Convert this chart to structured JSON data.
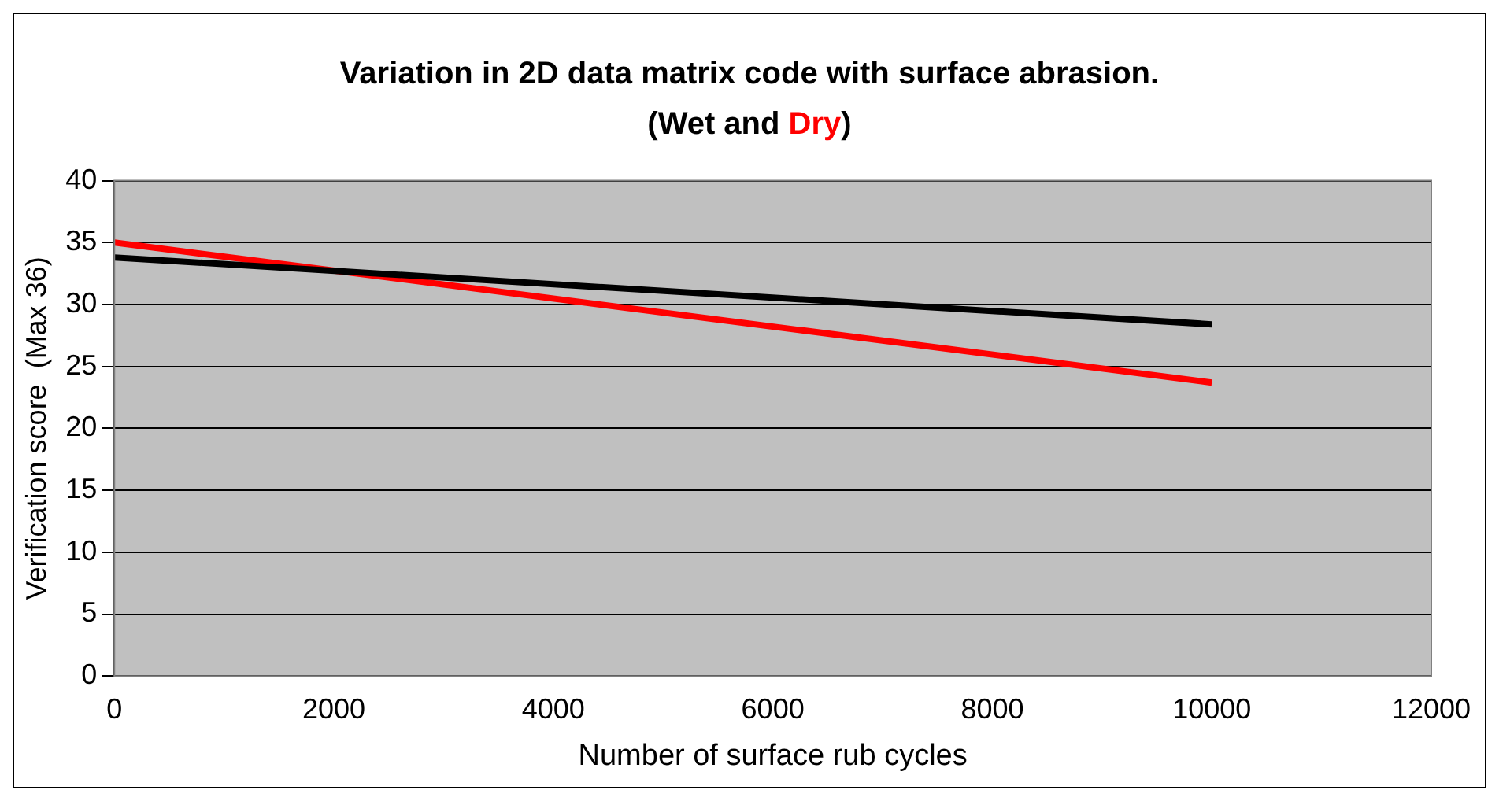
{
  "chart_data": {
    "type": "line",
    "title": "Variation in 2D data matrix code with surface abrasion.",
    "subtitle": "(Wet and Dry)",
    "xlabel": "Number of surface rub cycles",
    "ylabel": "Verification score  (Max 36)",
    "x": [
      0,
      10000
    ],
    "series": [
      {
        "color": "#000000",
        "values": [
          33.8,
          28.4
        ]
      },
      {
        "color": "#ff0000",
        "values": [
          35,
          23.7
        ]
      }
    ],
    "xlim": [
      0,
      12000
    ],
    "xticks": [
      0,
      2000,
      4000,
      6000,
      8000,
      10000,
      12000
    ],
    "ylim": [
      0,
      40
    ],
    "yticks": [
      0,
      5,
      10,
      15,
      20,
      25,
      30,
      35,
      40
    ],
    "grid": "y",
    "legend": false,
    "marker": "none",
    "line_style": "solid"
  }
}
